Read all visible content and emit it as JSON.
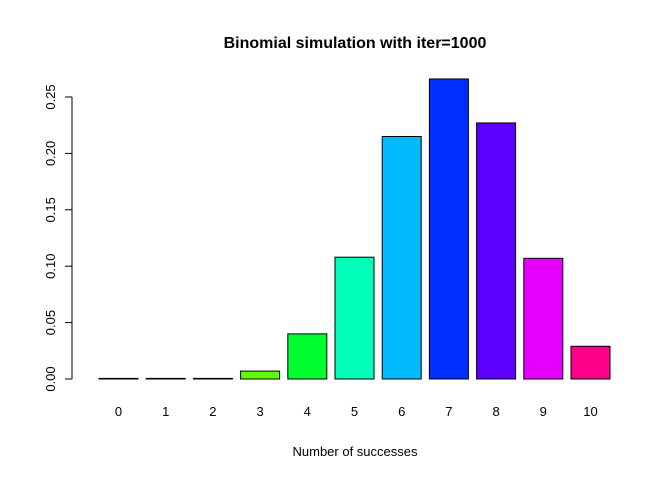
{
  "chart_data": {
    "type": "bar",
    "title": "Binomial simulation with iter=1000",
    "xlabel": "Number of successes",
    "ylabel": "",
    "categories": [
      "0",
      "1",
      "2",
      "3",
      "4",
      "5",
      "6",
      "7",
      "8",
      "9",
      "10"
    ],
    "values": [
      0.0,
      0.0,
      0.0,
      0.007,
      0.04,
      0.108,
      0.215,
      0.266,
      0.227,
      0.107,
      0.029
    ],
    "bar_colors": [
      "#FF0000",
      "#FF8B00",
      "#E8FF00",
      "#5DFF00",
      "#00FF2E",
      "#00FFB9",
      "#00B9FF",
      "#002EFF",
      "#5D00FF",
      "#E800FF",
      "#FF008B"
    ],
    "ylim": [
      0,
      0.27
    ],
    "yticks": [
      0.0,
      0.05,
      0.1,
      0.15,
      0.2,
      0.25
    ],
    "ytick_labels": [
      "0.00",
      "0.05",
      "0.10",
      "0.15",
      "0.20",
      "0.25"
    ],
    "grid": false,
    "legend": "none"
  }
}
